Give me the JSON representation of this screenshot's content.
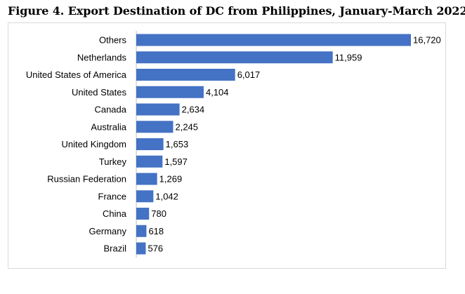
{
  "title": "Figure 4. Export Destination of DC from Philippines, January-March 2022",
  "chart_data": {
    "type": "bar",
    "orientation": "horizontal",
    "categories": [
      "Others",
      "Netherlands",
      "United States of America",
      "United States",
      "Canada",
      "Australia",
      "United Kingdom",
      "Turkey",
      "Russian Federation",
      "France",
      "China",
      "Germany",
      "Brazil"
    ],
    "values": [
      16720,
      11959,
      6017,
      4104,
      2634,
      2245,
      1653,
      1597,
      1269,
      1042,
      780,
      618,
      576
    ],
    "value_labels": [
      "16,720",
      "11,959",
      "6,017",
      "4,104",
      "2,634",
      "2,245",
      "1,653",
      "1,597",
      "1,269",
      "1,042",
      "780",
      "618",
      "576"
    ],
    "bar_color": "#4472c4",
    "grid": false,
    "legend": "none"
  }
}
